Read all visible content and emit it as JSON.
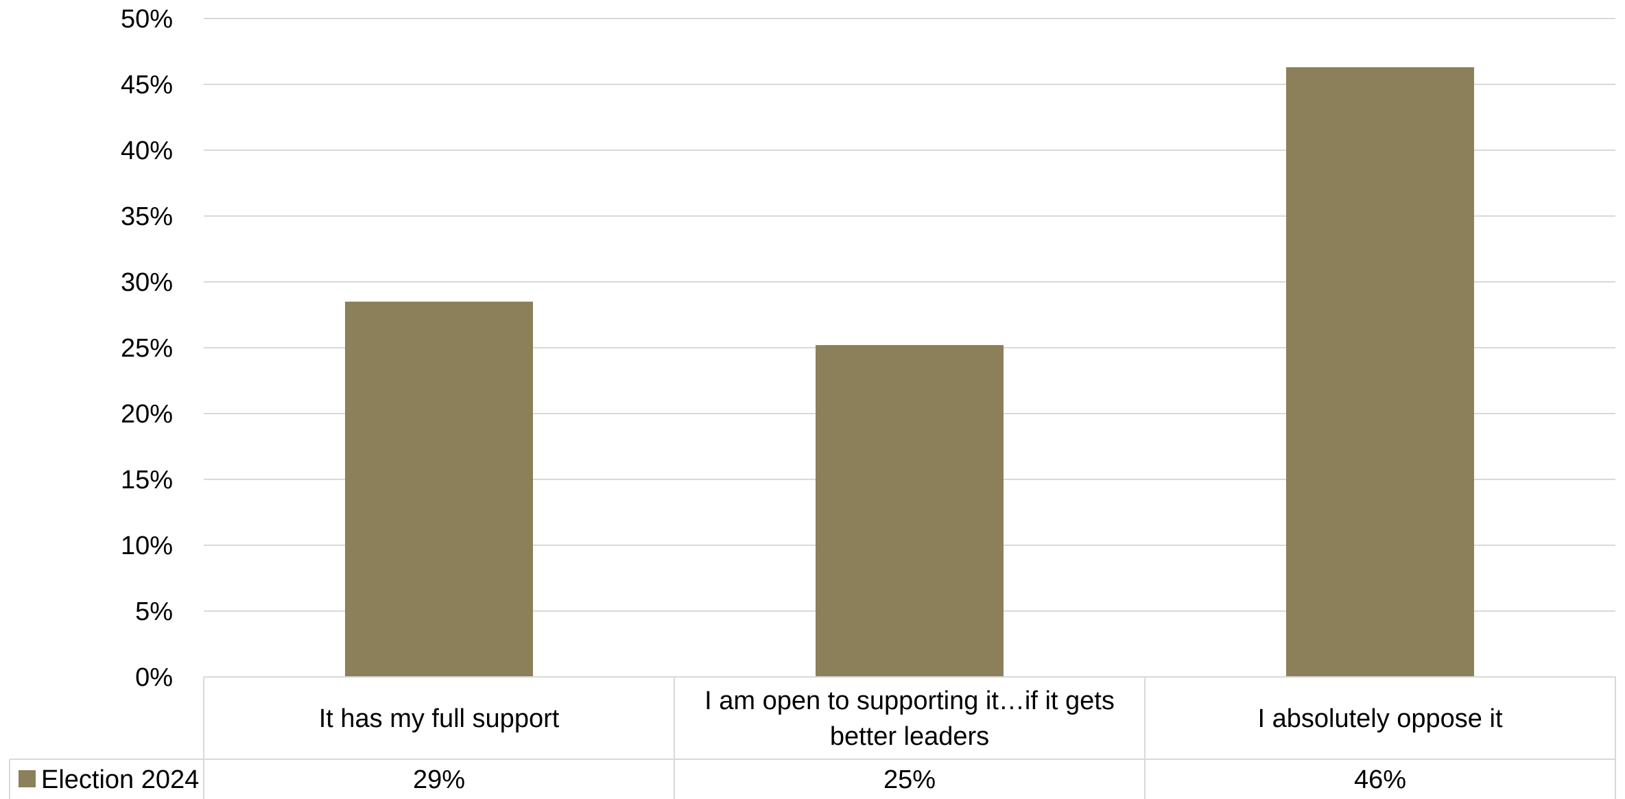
{
  "chart_data": {
    "type": "bar",
    "categories": [
      "It has my full support",
      "I am open to supporting it…if it gets better leaders",
      "I absolutely oppose it"
    ],
    "category_lines": [
      [
        "It has my full support"
      ],
      [
        "I am open to supporting it…if it gets",
        "better leaders"
      ],
      [
        "I absolutely oppose it"
      ]
    ],
    "series": [
      {
        "name": "Election 2024",
        "values": [
          28.5,
          25.2,
          46.3
        ],
        "labels": [
          "29%",
          "25%",
          "46%"
        ],
        "color": "#8b8059"
      }
    ],
    "ylim": [
      0,
      50
    ],
    "yticks": [
      "0%",
      "5%",
      "10%",
      "15%",
      "20%",
      "25%",
      "30%",
      "35%",
      "40%",
      "45%",
      "50%"
    ],
    "ytick_values": [
      0,
      5,
      10,
      15,
      20,
      25,
      30,
      35,
      40,
      45,
      50
    ],
    "grid": true,
    "data_table": true,
    "gridline_color": "#d9d9d9"
  }
}
